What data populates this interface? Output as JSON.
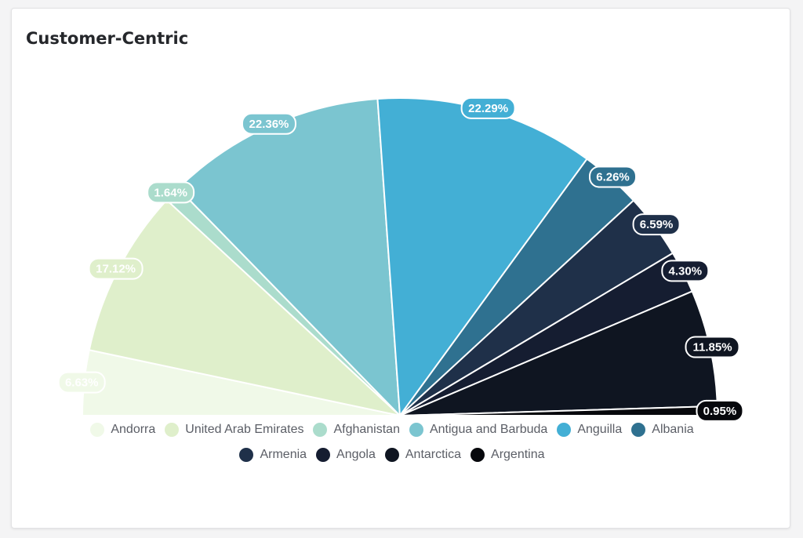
{
  "title": "Customer-Centric",
  "chart_data": {
    "type": "pie",
    "variant": "half-donut-semicircle",
    "title": "Customer-Centric",
    "legend_position": "bottom",
    "slices": [
      {
        "label": "Andorra",
        "value": 6.63,
        "display": "6.63%",
        "color": "#f0f9e8"
      },
      {
        "label": "United Arab Emirates",
        "value": 17.12,
        "display": "17.12%",
        "color": "#dfefcb"
      },
      {
        "label": "Afghanistan",
        "value": 1.64,
        "display": "1.64%",
        "color": "#abdccc"
      },
      {
        "label": "Antigua and Barbuda",
        "value": 22.36,
        "display": "22.36%",
        "color": "#7bc5d0"
      },
      {
        "label": "Anguilla",
        "value": 22.29,
        "display": "22.29%",
        "color": "#43afd5"
      },
      {
        "label": "Albania",
        "value": 6.26,
        "display": "6.26%",
        "color": "#2f7190"
      },
      {
        "label": "Armenia",
        "value": 6.59,
        "display": "6.59%",
        "color": "#1f3049"
      },
      {
        "label": "Angola",
        "value": 4.3,
        "display": "4.30%",
        "color": "#151d31"
      },
      {
        "label": "Antarctica",
        "value": 11.85,
        "display": "11.85%",
        "color": "#0f1521"
      },
      {
        "label": "Argentina",
        "value": 0.95,
        "display": "0.95%",
        "color": "#07080c"
      }
    ]
  }
}
